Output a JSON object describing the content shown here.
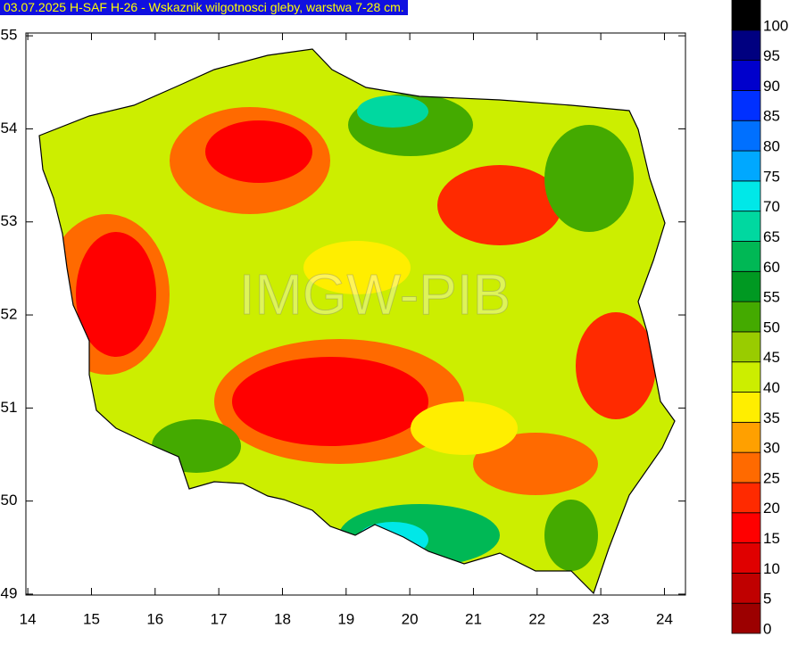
{
  "title": "03.07.2025 H-SAF H-26 - Wskaznik wilgotnosci gleby, warstwa 7-28 cm.",
  "watermark": "IMGW-PIB",
  "map": {
    "xlim": [
      13.97,
      24.33
    ],
    "ylim": [
      48.99,
      55.03
    ],
    "xticks": [
      14,
      15,
      16,
      17,
      18,
      19,
      20,
      21,
      22,
      23,
      24
    ],
    "yticks": [
      49,
      50,
      51,
      52,
      53,
      54,
      55
    ]
  },
  "colorbar": {
    "levels": [
      0,
      5,
      10,
      15,
      20,
      25,
      30,
      35,
      40,
      45,
      50,
      55,
      60,
      65,
      70,
      75,
      80,
      85,
      90,
      95,
      100
    ],
    "colors": [
      "#9c0000",
      "#c00000",
      "#e00000",
      "#ff0000",
      "#ff2a00",
      "#ff6a00",
      "#ffa000",
      "#ffee00",
      "#ccee00",
      "#99cc00",
      "#44aa00",
      "#009922",
      "#00b855",
      "#00d8a0",
      "#00e8e8",
      "#00a8ff",
      "#0070ff",
      "#0030ff",
      "#0000cc",
      "#000080",
      "#000000"
    ]
  }
}
